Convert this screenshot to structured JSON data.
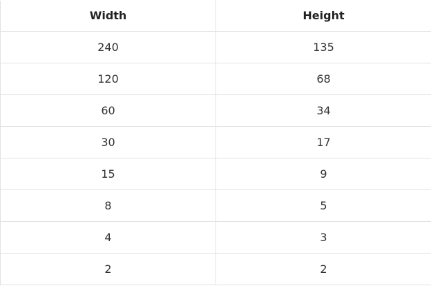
{
  "table": {
    "headers": [
      "Width",
      "Height"
    ],
    "rows": [
      [
        "240",
        "135"
      ],
      [
        "120",
        "68"
      ],
      [
        "60",
        "34"
      ],
      [
        "30",
        "17"
      ],
      [
        "15",
        "9"
      ],
      [
        "8",
        "5"
      ],
      [
        "4",
        "3"
      ],
      [
        "2",
        "2"
      ]
    ]
  },
  "colors": {
    "border": "#e2e2e2",
    "text": "#222222",
    "background": "#ffffff"
  }
}
